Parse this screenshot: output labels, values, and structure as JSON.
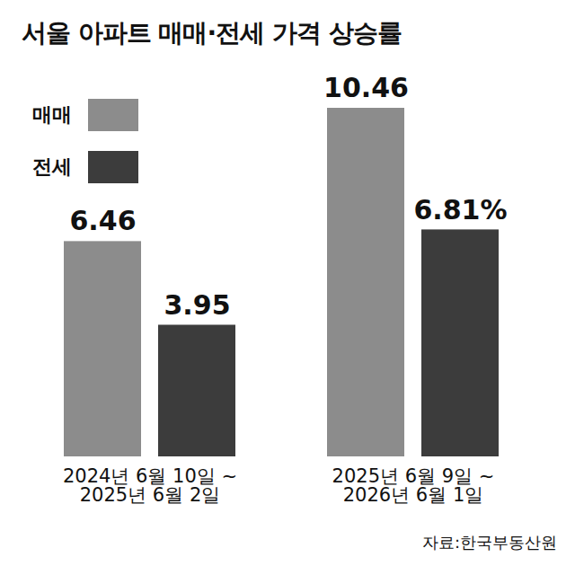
{
  "chart_data": {
    "type": "bar",
    "title": "서울 아파트 매매·전세 가격 상승률",
    "categories": [
      "2024년 6월 10일 ~\n2025년 6월 2일",
      "2025년 6월 9일 ~\n2026년 6월 1일"
    ],
    "series": [
      {
        "name": "매매",
        "color": "#8c8c8c",
        "values": [
          6.46,
          10.46
        ]
      },
      {
        "name": "전세",
        "color": "#3c3c3c",
        "values": [
          3.95,
          6.81
        ],
        "value_labels": [
          "3.95",
          "6.81%"
        ]
      }
    ],
    "ylim": [
      0,
      10.46
    ],
    "data_labels": true,
    "tick_labels": "x",
    "legend": "upper left",
    "source": "자료:한국부동산원"
  }
}
